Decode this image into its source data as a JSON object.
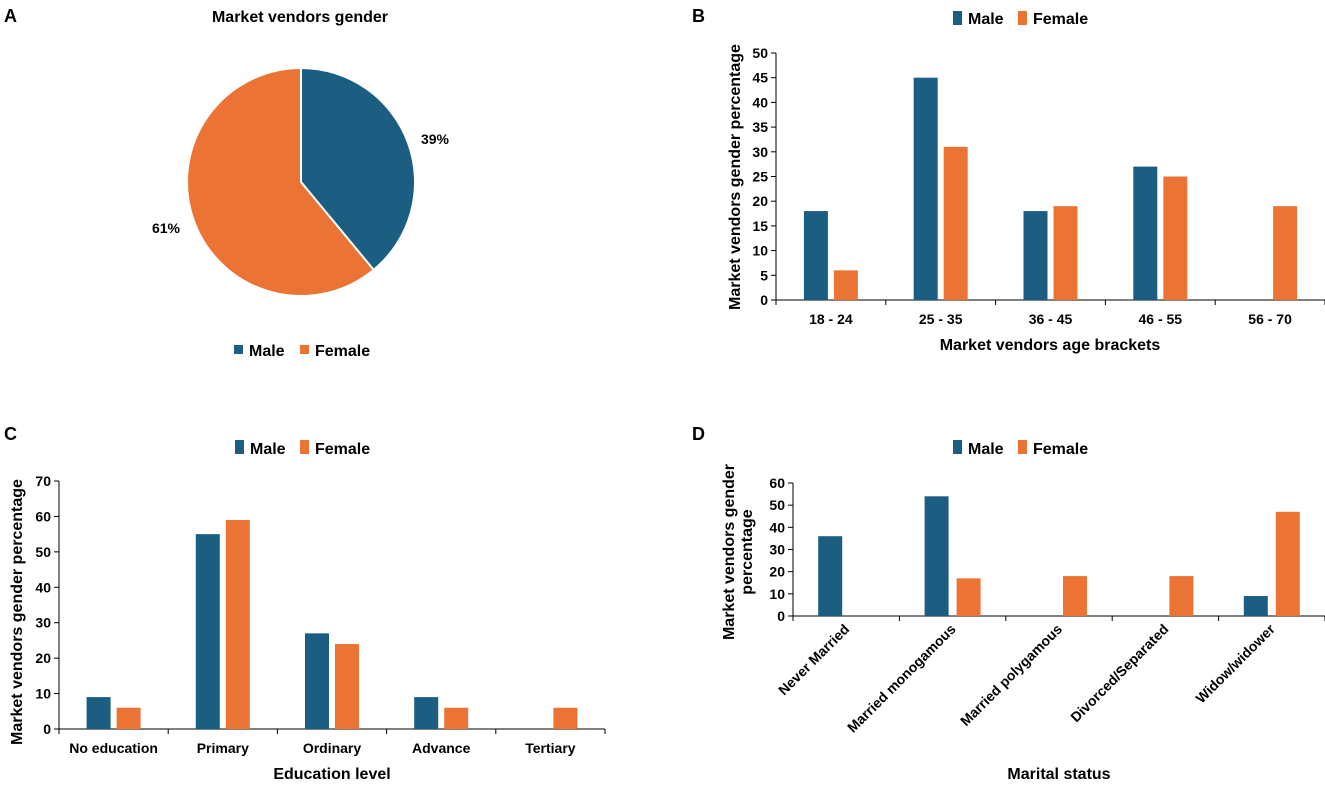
{
  "colors": {
    "male": "#1b5e82",
    "female": "#eb7434",
    "axis": "#000000"
  },
  "panels": {
    "A": {
      "label": "A"
    },
    "B": {
      "label": "B"
    },
    "C": {
      "label": "C"
    },
    "D": {
      "label": "D"
    }
  },
  "chart_data": [
    {
      "panel": "A",
      "type": "pie",
      "title": "Market vendors gender",
      "slices": [
        {
          "name": "Male",
          "value": 39,
          "label": "39%"
        },
        {
          "name": "Female",
          "value": 61,
          "label": "61%"
        }
      ],
      "legend": [
        "Male",
        "Female"
      ],
      "legend_position": "bottom"
    },
    {
      "panel": "B",
      "type": "bar",
      "categories": [
        "18 - 24",
        "25 - 35",
        "36 - 45",
        "46 - 55",
        "56 - 70"
      ],
      "series": [
        {
          "name": "Male",
          "values": [
            18,
            45,
            18,
            27,
            0
          ]
        },
        {
          "name": "Female",
          "values": [
            6,
            31,
            19,
            25,
            19
          ]
        }
      ],
      "xlabel": "Market vendors age brackets",
      "ylabel": "Market vendors gender percentage",
      "ylim": [
        0,
        50
      ],
      "yticks": [
        0,
        5,
        10,
        15,
        20,
        25,
        30,
        35,
        40,
        45,
        50
      ],
      "legend_position": "top"
    },
    {
      "panel": "C",
      "type": "bar",
      "categories": [
        "No education",
        "Primary",
        "Ordinary",
        "Advance",
        "Tertiary"
      ],
      "series": [
        {
          "name": "Male",
          "values": [
            9,
            55,
            27,
            9,
            0
          ]
        },
        {
          "name": "Female",
          "values": [
            6,
            59,
            24,
            6,
            6
          ]
        }
      ],
      "xlabel": "Education level",
      "ylabel": "Market vendors gender percentage",
      "ylim": [
        0,
        70
      ],
      "yticks": [
        0,
        10,
        20,
        30,
        40,
        50,
        60,
        70
      ],
      "legend_position": "top"
    },
    {
      "panel": "D",
      "type": "bar",
      "categories": [
        "Never Married",
        "Married monogamous",
        "Married polygamous",
        "Divorced/Separated",
        "Widow/widower"
      ],
      "series": [
        {
          "name": "Male",
          "values": [
            36,
            54,
            0,
            0,
            9
          ]
        },
        {
          "name": "Female",
          "values": [
            0,
            17,
            18,
            18,
            47
          ]
        }
      ],
      "xlabel": "Marital status",
      "ylabel": [
        "Market vendors gender",
        "percentage"
      ],
      "ylim": [
        0,
        60
      ],
      "yticks": [
        0,
        10,
        20,
        30,
        40,
        50,
        60
      ],
      "legend_position": "top"
    }
  ]
}
